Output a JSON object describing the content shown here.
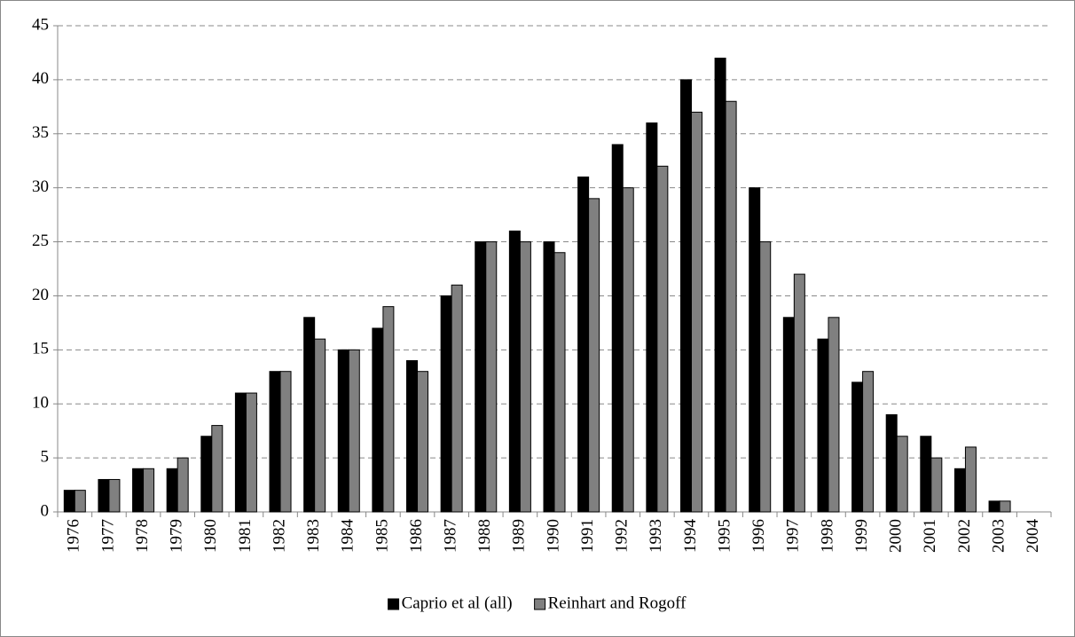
{
  "chart_data": {
    "type": "bar",
    "categories": [
      "1976",
      "1977",
      "1978",
      "1979",
      "1980",
      "1981",
      "1982",
      "1983",
      "1984",
      "1985",
      "1986",
      "1987",
      "1988",
      "1989",
      "1990",
      "1991",
      "1992",
      "1993",
      "1994",
      "1995",
      "1996",
      "1997",
      "1998",
      "1999",
      "2000",
      "2001",
      "2002",
      "2003",
      "2004"
    ],
    "series": [
      {
        "name": "Caprio et al (all)",
        "color": "#000000",
        "values": [
          2,
          3,
          4,
          4,
          7,
          11,
          13,
          18,
          15,
          17,
          14,
          20,
          25,
          26,
          25,
          31,
          34,
          36,
          40,
          42,
          30,
          18,
          16,
          12,
          9,
          7,
          4,
          1,
          0
        ]
      },
      {
        "name": "Reinhart and Rogoff",
        "color": "#808080",
        "values": [
          2,
          3,
          4,
          5,
          8,
          11,
          13,
          16,
          15,
          19,
          13,
          21,
          25,
          25,
          24,
          29,
          30,
          32,
          37,
          38,
          25,
          22,
          18,
          13,
          7,
          5,
          6,
          1,
          0
        ]
      }
    ],
    "ylim": [
      0,
      45
    ],
    "yticks": [
      0,
      5,
      10,
      15,
      20,
      25,
      30,
      35,
      40,
      45
    ],
    "grid": true,
    "legend": "bottom"
  }
}
